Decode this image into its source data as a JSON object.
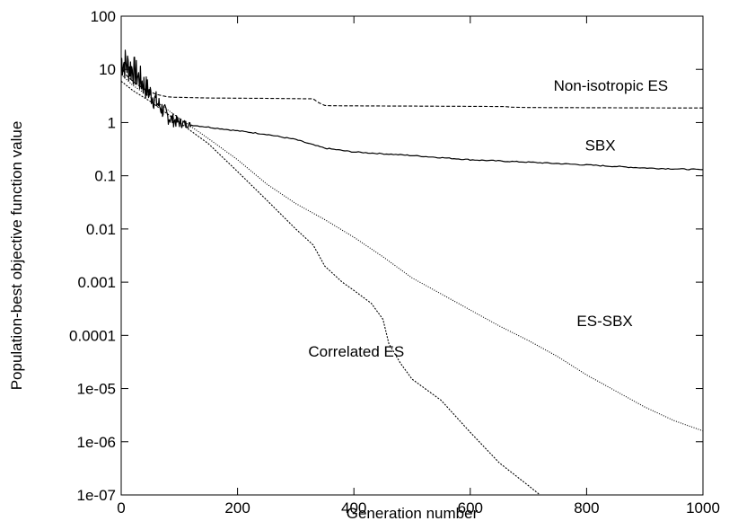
{
  "chart_data": {
    "type": "line",
    "title": "",
    "xlabel": "Generation number",
    "ylabel": "Population-best objective function value",
    "xlim": [
      0,
      1000
    ],
    "ylim": [
      1e-07,
      100
    ],
    "yscale": "log",
    "grid": false,
    "legend": "none (inline labels)",
    "x_ticks": [
      {
        "value": 0,
        "label": "0"
      },
      {
        "value": 200,
        "label": "200"
      },
      {
        "value": 400,
        "label": "400"
      },
      {
        "value": 600,
        "label": "600"
      },
      {
        "value": 800,
        "label": "800"
      },
      {
        "value": 1000,
        "label": "1000"
      }
    ],
    "y_ticks": [
      {
        "value": 100,
        "label": "100"
      },
      {
        "value": 10,
        "label": "10"
      },
      {
        "value": 1,
        "label": "1"
      },
      {
        "value": 0.1,
        "label": "0.1"
      },
      {
        "value": 0.01,
        "label": "0.01"
      },
      {
        "value": 0.001,
        "label": "0.001"
      },
      {
        "value": 0.0001,
        "label": "0.0001"
      },
      {
        "value": 1e-05,
        "label": "1e-05"
      },
      {
        "value": 1e-06,
        "label": "1e-06"
      },
      {
        "value": 1e-07,
        "label": "1e-07"
      }
    ],
    "series": [
      {
        "name": "Non-isotropic ES",
        "style": "dashed",
        "noise": 0,
        "label_at": [
          700,
          4.0
        ],
        "points": [
          [
            0,
            12
          ],
          [
            5,
            9
          ],
          [
            10,
            7.5
          ],
          [
            20,
            6
          ],
          [
            30,
            5
          ],
          [
            40,
            4.3
          ],
          [
            50,
            3.8
          ],
          [
            60,
            3.4
          ],
          [
            70,
            3.2
          ],
          [
            80,
            3.05
          ],
          [
            90,
            3.0
          ],
          [
            150,
            2.9
          ],
          [
            250,
            2.85
          ],
          [
            330,
            2.8
          ],
          [
            340,
            2.35
          ],
          [
            350,
            2.1
          ],
          [
            360,
            2.07
          ],
          [
            450,
            2.05
          ],
          [
            500,
            2.04
          ],
          [
            600,
            2.02
          ],
          [
            660,
            2.0
          ],
          [
            670,
            1.95
          ],
          [
            700,
            1.92
          ],
          [
            800,
            1.9
          ],
          [
            900,
            1.89
          ],
          [
            1000,
            1.88
          ]
        ]
      },
      {
        "name": "SBX",
        "style": "solid",
        "noise": 0.35,
        "label_at": [
          700,
          0.3
        ],
        "points": [
          [
            0,
            15
          ],
          [
            10,
            12
          ],
          [
            20,
            10
          ],
          [
            30,
            7
          ],
          [
            40,
            5
          ],
          [
            50,
            3.5
          ],
          [
            60,
            2.5
          ],
          [
            70,
            1.8
          ],
          [
            80,
            1.3
          ],
          [
            90,
            1.1
          ],
          [
            100,
            1.0
          ],
          [
            120,
            0.9
          ],
          [
            150,
            0.82
          ],
          [
            200,
            0.7
          ],
          [
            250,
            0.6
          ],
          [
            300,
            0.48
          ],
          [
            330,
            0.38
          ],
          [
            350,
            0.33
          ],
          [
            400,
            0.28
          ],
          [
            500,
            0.24
          ],
          [
            600,
            0.2
          ],
          [
            700,
            0.18
          ],
          [
            800,
            0.16
          ],
          [
            900,
            0.14
          ],
          [
            1000,
            0.13
          ]
        ]
      },
      {
        "name": "ES-SBX",
        "style": "dotted",
        "noise": 0,
        "label_at": [
          700,
          0.00015
        ],
        "points": [
          [
            0,
            8
          ],
          [
            20,
            5
          ],
          [
            50,
            3
          ],
          [
            100,
            1.2
          ],
          [
            150,
            0.5
          ],
          [
            200,
            0.2
          ],
          [
            250,
            0.07
          ],
          [
            300,
            0.03
          ],
          [
            350,
            0.015
          ],
          [
            400,
            0.007
          ],
          [
            450,
            0.003
          ],
          [
            500,
            0.0012
          ],
          [
            550,
            0.0006
          ],
          [
            600,
            0.0003
          ],
          [
            650,
            0.00015
          ],
          [
            700,
            8e-05
          ],
          [
            750,
            4e-05
          ],
          [
            800,
            1.8e-05
          ],
          [
            850,
            9e-06
          ],
          [
            900,
            4.5e-06
          ],
          [
            950,
            2.5e-06
          ],
          [
            1000,
            1.6e-06
          ]
        ]
      },
      {
        "name": "Correlated ES",
        "style": "dashed-fine",
        "noise": 0,
        "label_at": [
          350,
          4e-05
        ],
        "points": [
          [
            0,
            6
          ],
          [
            20,
            4
          ],
          [
            50,
            2.5
          ],
          [
            100,
            1.0
          ],
          [
            150,
            0.4
          ],
          [
            200,
            0.12
          ],
          [
            250,
            0.035
          ],
          [
            300,
            0.01
          ],
          [
            330,
            0.005
          ],
          [
            350,
            0.002
          ],
          [
            380,
            0.001
          ],
          [
            400,
            0.0007
          ],
          [
            430,
            0.0004
          ],
          [
            450,
            0.0002
          ],
          [
            460,
            7e-05
          ],
          [
            480,
            3e-05
          ],
          [
            500,
            1.5e-05
          ],
          [
            550,
            6e-06
          ],
          [
            600,
            1.5e-06
          ],
          [
            650,
            4e-07
          ],
          [
            700,
            1.5e-07
          ],
          [
            720,
            1e-07
          ]
        ]
      }
    ]
  }
}
